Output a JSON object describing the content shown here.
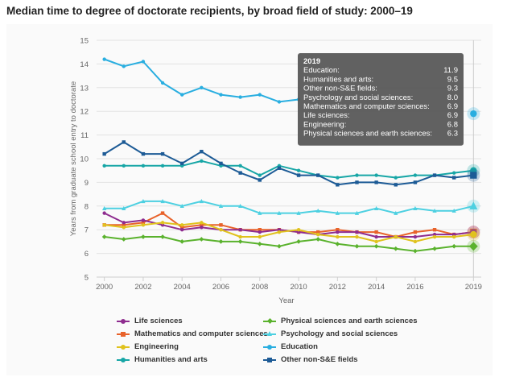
{
  "title": "Median time to degree of doctorate recipients, by broad field of study: 2000–19",
  "chart_data": {
    "type": "line",
    "x": [
      2000,
      2001,
      2002,
      2003,
      2004,
      2005,
      2006,
      2007,
      2008,
      2009,
      2010,
      2011,
      2012,
      2013,
      2014,
      2015,
      2016,
      2017,
      2018,
      2019
    ],
    "xlim": [
      1999.6,
      2019.4
    ],
    "ylim": [
      5,
      15
    ],
    "x_ticks": [
      2000,
      2002,
      2004,
      2006,
      2008,
      2010,
      2012,
      2014,
      2016,
      2019
    ],
    "x_tick_labels": [
      "2000",
      "2002",
      "2004",
      "2006",
      "2008",
      "2010",
      "2012",
      "2014",
      "2016",
      "2019"
    ],
    "y_ticks": [
      5,
      6,
      7,
      8,
      9,
      10,
      11,
      12,
      13,
      14,
      15
    ],
    "y_tick_labels": [
      "5",
      "6",
      "7",
      "8",
      "9",
      "10",
      "11",
      "12",
      "13",
      "14",
      "15"
    ],
    "xlabel": "Year",
    "ylabel": "Years from graduate school entry to doctorate",
    "grid": "horizontal",
    "legend_position": "bottom",
    "series": [
      {
        "name": "Education",
        "color": "#29aee0",
        "marker": "circle",
        "values": [
          14.2,
          13.9,
          14.1,
          13.2,
          12.7,
          13.0,
          12.7,
          12.6,
          12.7,
          12.4,
          12.5,
          null,
          null,
          null,
          null,
          null,
          null,
          null,
          null,
          11.9
        ]
      },
      {
        "name": "Humanities and arts",
        "color": "#17a6a6",
        "marker": "circle",
        "values": [
          9.7,
          9.7,
          9.7,
          9.7,
          9.7,
          9.9,
          9.7,
          9.7,
          9.3,
          9.7,
          9.5,
          9.3,
          9.2,
          9.3,
          9.3,
          9.2,
          9.3,
          9.3,
          9.4,
          9.5
        ]
      },
      {
        "name": "Other non-S&E fields",
        "color": "#1d5b96",
        "marker": "square",
        "values": [
          10.2,
          10.7,
          10.2,
          10.2,
          9.8,
          10.3,
          9.8,
          9.4,
          9.1,
          9.6,
          9.3,
          9.3,
          8.9,
          9.0,
          9.0,
          8.9,
          9.0,
          9.3,
          9.2,
          9.3
        ]
      },
      {
        "name": "Psychology and social sciences",
        "color": "#4dd0e1",
        "marker": "triangle",
        "values": [
          7.9,
          7.9,
          8.2,
          8.2,
          8.0,
          8.2,
          8.0,
          8.0,
          7.7,
          7.7,
          7.7,
          7.8,
          7.7,
          7.7,
          7.9,
          7.7,
          7.9,
          7.8,
          7.8,
          8.0
        ]
      },
      {
        "name": "Mathematics and computer sciences",
        "color": "#e8622a",
        "marker": "square",
        "values": [
          7.2,
          7.2,
          7.3,
          7.7,
          7.1,
          7.2,
          7.2,
          7.0,
          7.0,
          7.0,
          6.9,
          6.9,
          7.0,
          6.9,
          6.9,
          6.7,
          6.9,
          7.0,
          6.8,
          6.9
        ]
      },
      {
        "name": "Life sciences",
        "color": "#8e2c8f",
        "marker": "circle",
        "values": [
          7.7,
          7.3,
          7.4,
          7.2,
          7.0,
          7.1,
          7.0,
          7.0,
          6.9,
          7.0,
          6.9,
          6.8,
          6.9,
          6.9,
          6.7,
          6.7,
          6.7,
          6.8,
          6.8,
          6.9
        ]
      },
      {
        "name": "Engineering",
        "color": "#e0c21d",
        "marker": "circle",
        "values": [
          7.2,
          7.1,
          7.2,
          7.3,
          7.2,
          7.3,
          7.0,
          6.7,
          6.7,
          6.9,
          7.0,
          6.8,
          6.7,
          6.7,
          6.5,
          6.7,
          6.5,
          6.7,
          6.7,
          6.8
        ]
      },
      {
        "name": "Physical sciences and earth sciences",
        "color": "#5ab22d",
        "marker": "diamond",
        "values": [
          6.7,
          6.6,
          6.7,
          6.7,
          6.5,
          6.6,
          6.5,
          6.5,
          6.4,
          6.3,
          6.5,
          6.6,
          6.4,
          6.3,
          6.3,
          6.2,
          6.1,
          6.2,
          6.3,
          6.3
        ]
      }
    ],
    "tooltip": {
      "title": "2019",
      "rows": [
        {
          "label": "Education:",
          "value": "11.9"
        },
        {
          "label": "Humanities and arts:",
          "value": "9.5"
        },
        {
          "label": "Other non-S&E fields:",
          "value": "9.3"
        },
        {
          "label": "Psychology and social sciences:",
          "value": "8.0"
        },
        {
          "label": "Mathematics and computer sciences:",
          "value": "6.9"
        },
        {
          "label": "Life sciences:",
          "value": "6.9"
        },
        {
          "label": "Engineering:",
          "value": "6.8"
        },
        {
          "label": "Physical sciences and earth sciences:",
          "value": "6.3"
        }
      ]
    }
  },
  "legend": [
    {
      "name": "Life sciences",
      "color": "#8e2c8f",
      "marker": "circle"
    },
    {
      "name": "Physical sciences and earth sciences",
      "color": "#5ab22d",
      "marker": "diamond"
    },
    {
      "name": "Mathematics and computer sciences",
      "color": "#e8622a",
      "marker": "square"
    },
    {
      "name": "Psychology and social sciences",
      "color": "#4dd0e1",
      "marker": "triangle"
    },
    {
      "name": "Engineering",
      "color": "#e0c21d",
      "marker": "circle"
    },
    {
      "name": "Education",
      "color": "#29aee0",
      "marker": "circle"
    },
    {
      "name": "Humanities and arts",
      "color": "#17a6a6",
      "marker": "circle"
    },
    {
      "name": "Other non-S&E fields",
      "color": "#1d5b96",
      "marker": "square"
    }
  ]
}
